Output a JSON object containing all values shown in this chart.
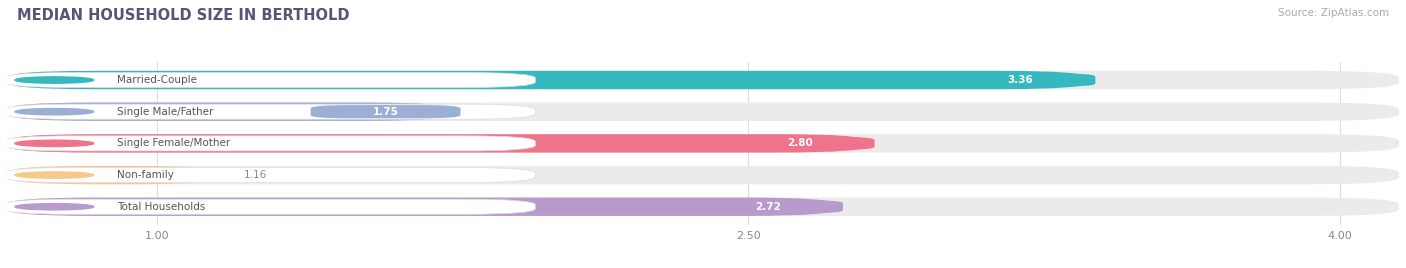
{
  "title": "MEDIAN HOUSEHOLD SIZE IN BERTHOLD",
  "source": "Source: ZipAtlas.com",
  "categories": [
    "Married-Couple",
    "Single Male/Father",
    "Single Female/Mother",
    "Non-family",
    "Total Households"
  ],
  "values": [
    3.36,
    1.75,
    2.8,
    1.16,
    2.72
  ],
  "bar_colors": [
    "#35b8be",
    "#9baed4",
    "#f0738c",
    "#f5c98a",
    "#b89bcc"
  ],
  "label_bg": "#ffffff",
  "background_color": "#ffffff",
  "bar_bg_color": "#ebebeb",
  "xticks": [
    1.0,
    2.5,
    4.0
  ],
  "xmin": 0.62,
  "xmax": 4.15,
  "value_text_color_inside": "#ffffff",
  "value_text_color_outside": "#888888"
}
